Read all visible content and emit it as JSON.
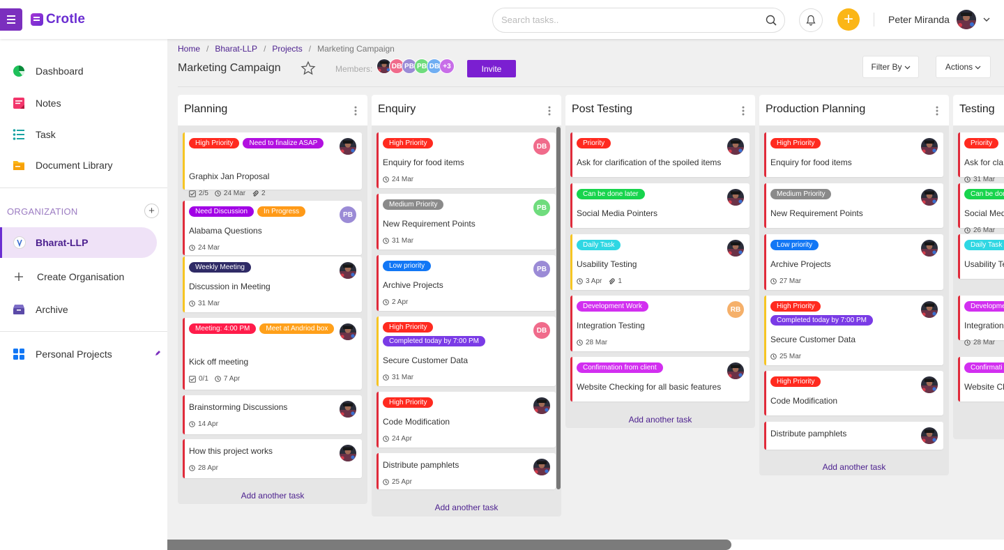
{
  "app": {
    "name": "Crotle"
  },
  "header": {
    "search_placeholder": "Search tasks..",
    "user_name": "Peter Miranda"
  },
  "sidebar": {
    "items": [
      {
        "label": "Dashboard",
        "icon": "pie-chart-icon"
      },
      {
        "label": "Notes",
        "icon": "notes-icon"
      },
      {
        "label": "Task",
        "icon": "task-list-icon"
      },
      {
        "label": "Document Library",
        "icon": "folder-icon"
      }
    ],
    "org_label": "ORGANIZATION",
    "org_active": "Bharat-LLP",
    "create_org": "Create Organisation",
    "archive": "Archive",
    "personal": "Personal Projects"
  },
  "breadcrumb": {
    "items": [
      "Home",
      "Bharat-LLP",
      "Projects"
    ],
    "current": "Marketing Campaign"
  },
  "page": {
    "title": "Marketing Campaign",
    "members_label": "Members:",
    "members": [
      {
        "type": "photo"
      },
      {
        "type": "initials",
        "text": "DB",
        "color": "#f06b8b"
      },
      {
        "type": "initials",
        "text": "PB",
        "color": "#9b8bd6"
      },
      {
        "type": "initials",
        "text": "PB",
        "color": "#6fdc7d"
      },
      {
        "type": "initials",
        "text": "DB",
        "color": "#70aef2"
      },
      {
        "type": "initials",
        "text": "+3",
        "color": "#c86ee8"
      }
    ],
    "invite_label": "Invite",
    "filter_label": "Filter By",
    "actions_label": "Actions"
  },
  "colors": {
    "accent": "#6a2dd1",
    "high": "#ff2a1f",
    "need_finalize": "#b210e0",
    "need_discussion": "#a200e6",
    "in_progress": "#ff9a18",
    "weekly": "#2f2b66",
    "meeting": "#ff1c4a",
    "meet_box": "#ffa01a",
    "medium": "#8a8a8a",
    "low": "#1277f5",
    "completed": "#7a3be6",
    "done_later": "#18d44d",
    "daily": "#2fd7e3",
    "dev": "#d22ff0",
    "confirmation": "#d22ff0"
  },
  "columns": [
    {
      "title": "Planning",
      "add_label": "Add another task",
      "cards": [
        {
          "tags": [
            {
              "text": "High Priority",
              "color": "#ff2a1f"
            },
            {
              "text": "Need to finalize ASAP",
              "color": "#b210e0"
            }
          ],
          "title": "Graphix Jan Proposal",
          "checklist": "2/5",
          "date": "24 Mar",
          "attachments": "2",
          "avatar": {
            "type": "photo"
          },
          "bar": "y"
        },
        {
          "tags": [
            {
              "text": "Need Discussion",
              "color": "#a200e6"
            },
            {
              "text": "In Progress",
              "color": "#ff9a18"
            }
          ],
          "title": "Alabama Questions",
          "date": "24 Mar",
          "avatar": {
            "type": "initials",
            "text": "PB",
            "color": "#9b8bd6"
          },
          "bar": "r"
        },
        {
          "tags": [
            {
              "text": "Weekly Meeting",
              "color": "#2f2b66"
            }
          ],
          "title": "Discussion in Meeting",
          "date": "31 Mar",
          "avatar": {
            "type": "photo"
          },
          "bar": "y"
        },
        {
          "tags": [
            {
              "text": "Meeting: 4:00 PM",
              "color": "#ff1c4a"
            },
            {
              "text": "Meet at Andriod box",
              "color": "#ffa01a"
            }
          ],
          "title": "Kick off meeting",
          "checklist": "0/1",
          "date": "7 Apr",
          "avatar": {
            "type": "photo"
          },
          "bar": "r"
        },
        {
          "tags": [],
          "title": "Brainstorming Discussions",
          "date": "14 Apr",
          "avatar": {
            "type": "photo"
          },
          "bar": "r"
        },
        {
          "tags": [],
          "title": "How this project works",
          "date": "28 Apr",
          "avatar": {
            "type": "photo"
          },
          "bar": "r"
        }
      ]
    },
    {
      "title": "Enquiry",
      "add_label": "Add another task",
      "cards": [
        {
          "tags": [
            {
              "text": "High Priority",
              "color": "#ff2a1f"
            }
          ],
          "title": "Enquiry for food items",
          "date": "24 Mar",
          "avatar": {
            "type": "initials",
            "text": "DB",
            "color": "#f06b8b"
          },
          "bar": "r"
        },
        {
          "tags": [
            {
              "text": "Medium Priority",
              "color": "#8a8a8a"
            }
          ],
          "title": "New Requirement Points",
          "date": "31 Mar",
          "avatar": {
            "type": "initials",
            "text": "PB",
            "color": "#6fdc7d"
          },
          "bar": "r"
        },
        {
          "tags": [
            {
              "text": "Low priority",
              "color": "#1277f5"
            }
          ],
          "title": "Archive Projects",
          "date": "2 Apr",
          "avatar": {
            "type": "initials",
            "text": "PB",
            "color": "#9b8bd6"
          },
          "bar": "r"
        },
        {
          "tags": [
            {
              "text": "High Priority",
              "color": "#ff2a1f"
            },
            {
              "text": "Completed today by 7:00 PM",
              "color": "#7a3be6"
            }
          ],
          "title": "Secure Customer Data",
          "date": "31 Mar",
          "avatar": {
            "type": "initials",
            "text": "DB",
            "color": "#f06b8b"
          },
          "bar": "y"
        },
        {
          "tags": [
            {
              "text": "High Priority",
              "color": "#ff2a1f"
            }
          ],
          "title": "Code Modification",
          "date": "24 Apr",
          "avatar": {
            "type": "photo"
          },
          "bar": "r"
        },
        {
          "tags": [],
          "title": "Distribute pamphlets",
          "date": "25 Apr",
          "avatar": {
            "type": "photo"
          },
          "bar": "r"
        }
      ]
    },
    {
      "title": "Post Testing",
      "add_label": "Add another task",
      "cards": [
        {
          "tags": [
            {
              "text": "Priority",
              "color": "#ff2a1f"
            }
          ],
          "title": "Ask for clarification of the spoiled items",
          "avatar": {
            "type": "photo"
          },
          "bar": "r"
        },
        {
          "tags": [
            {
              "text": "Can be done later",
              "color": "#18d44d"
            }
          ],
          "title": "Social Media Pointers",
          "avatar": {
            "type": "photo"
          },
          "bar": "r"
        },
        {
          "tags": [
            {
              "text": "Daily Task",
              "color": "#2fd7e3"
            }
          ],
          "title": "Usability Testing",
          "date": "3 Apr",
          "attachments": "1",
          "avatar": {
            "type": "photo"
          },
          "bar": "y"
        },
        {
          "tags": [
            {
              "text": "Development Work",
              "color": "#d22ff0"
            }
          ],
          "title": "Integration Testing",
          "date": "28 Mar",
          "avatar": {
            "type": "initials",
            "text": "RB",
            "color": "#f5b06a"
          },
          "bar": "r"
        },
        {
          "tags": [
            {
              "text": "Confirmation from client",
              "color": "#d22ff0"
            }
          ],
          "title": "Website Checking for all basic features",
          "avatar": {
            "type": "photo"
          },
          "bar": "r"
        }
      ]
    },
    {
      "title": "Production Planning",
      "add_label": "Add another task",
      "cards": [
        {
          "tags": [
            {
              "text": "High Priority",
              "color": "#ff2a1f"
            }
          ],
          "title": "Enquiry for food items",
          "avatar": {
            "type": "photo"
          },
          "bar": "r"
        },
        {
          "tags": [
            {
              "text": "Medium Priority",
              "color": "#8a8a8a"
            }
          ],
          "title": "New Requirement Points",
          "avatar": {
            "type": "photo"
          },
          "bar": "r"
        },
        {
          "tags": [
            {
              "text": "Low priority",
              "color": "#1277f5"
            }
          ],
          "title": "Archive Projects",
          "date": "27 Mar",
          "avatar": {
            "type": "photo"
          },
          "bar": "r"
        },
        {
          "tags": [
            {
              "text": "High Priority",
              "color": "#ff2a1f"
            },
            {
              "text": "Completed today by 7:00 PM",
              "color": "#7a3be6"
            }
          ],
          "title": "Secure Customer Data",
          "date": "25 Mar",
          "avatar": {
            "type": "photo"
          },
          "bar": "y"
        },
        {
          "tags": [
            {
              "text": "High Priority",
              "color": "#ff2a1f"
            }
          ],
          "title": "Code Modification",
          "avatar": {
            "type": "photo"
          },
          "bar": "r"
        },
        {
          "tags": [],
          "title": "Distribute pamphlets",
          "avatar": {
            "type": "photo"
          },
          "bar": "r"
        }
      ]
    },
    {
      "title": "Testing",
      "add_label": "",
      "cards": [
        {
          "tags": [
            {
              "text": "Priority",
              "color": "#ff2a1f"
            }
          ],
          "title": "Ask for cla",
          "date": "31 Mar",
          "bar": "r"
        },
        {
          "tags": [
            {
              "text": "Can be done",
              "color": "#18d44d"
            }
          ],
          "title": "Social Med",
          "date": "26 Mar",
          "bar": "r"
        },
        {
          "tags": [
            {
              "text": "Daily Task",
              "color": "#2fd7e3"
            }
          ],
          "title": "Usability Te",
          "bar": "r"
        },
        {
          "tags": [
            {
              "text": "Developme",
              "color": "#d22ff0"
            }
          ],
          "title": "Integration",
          "date": "28 Mar",
          "bar": "r"
        },
        {
          "tags": [
            {
              "text": "Confirmati",
              "color": "#d22ff0"
            }
          ],
          "title": "Website Ch",
          "bar": "r"
        }
      ]
    }
  ]
}
